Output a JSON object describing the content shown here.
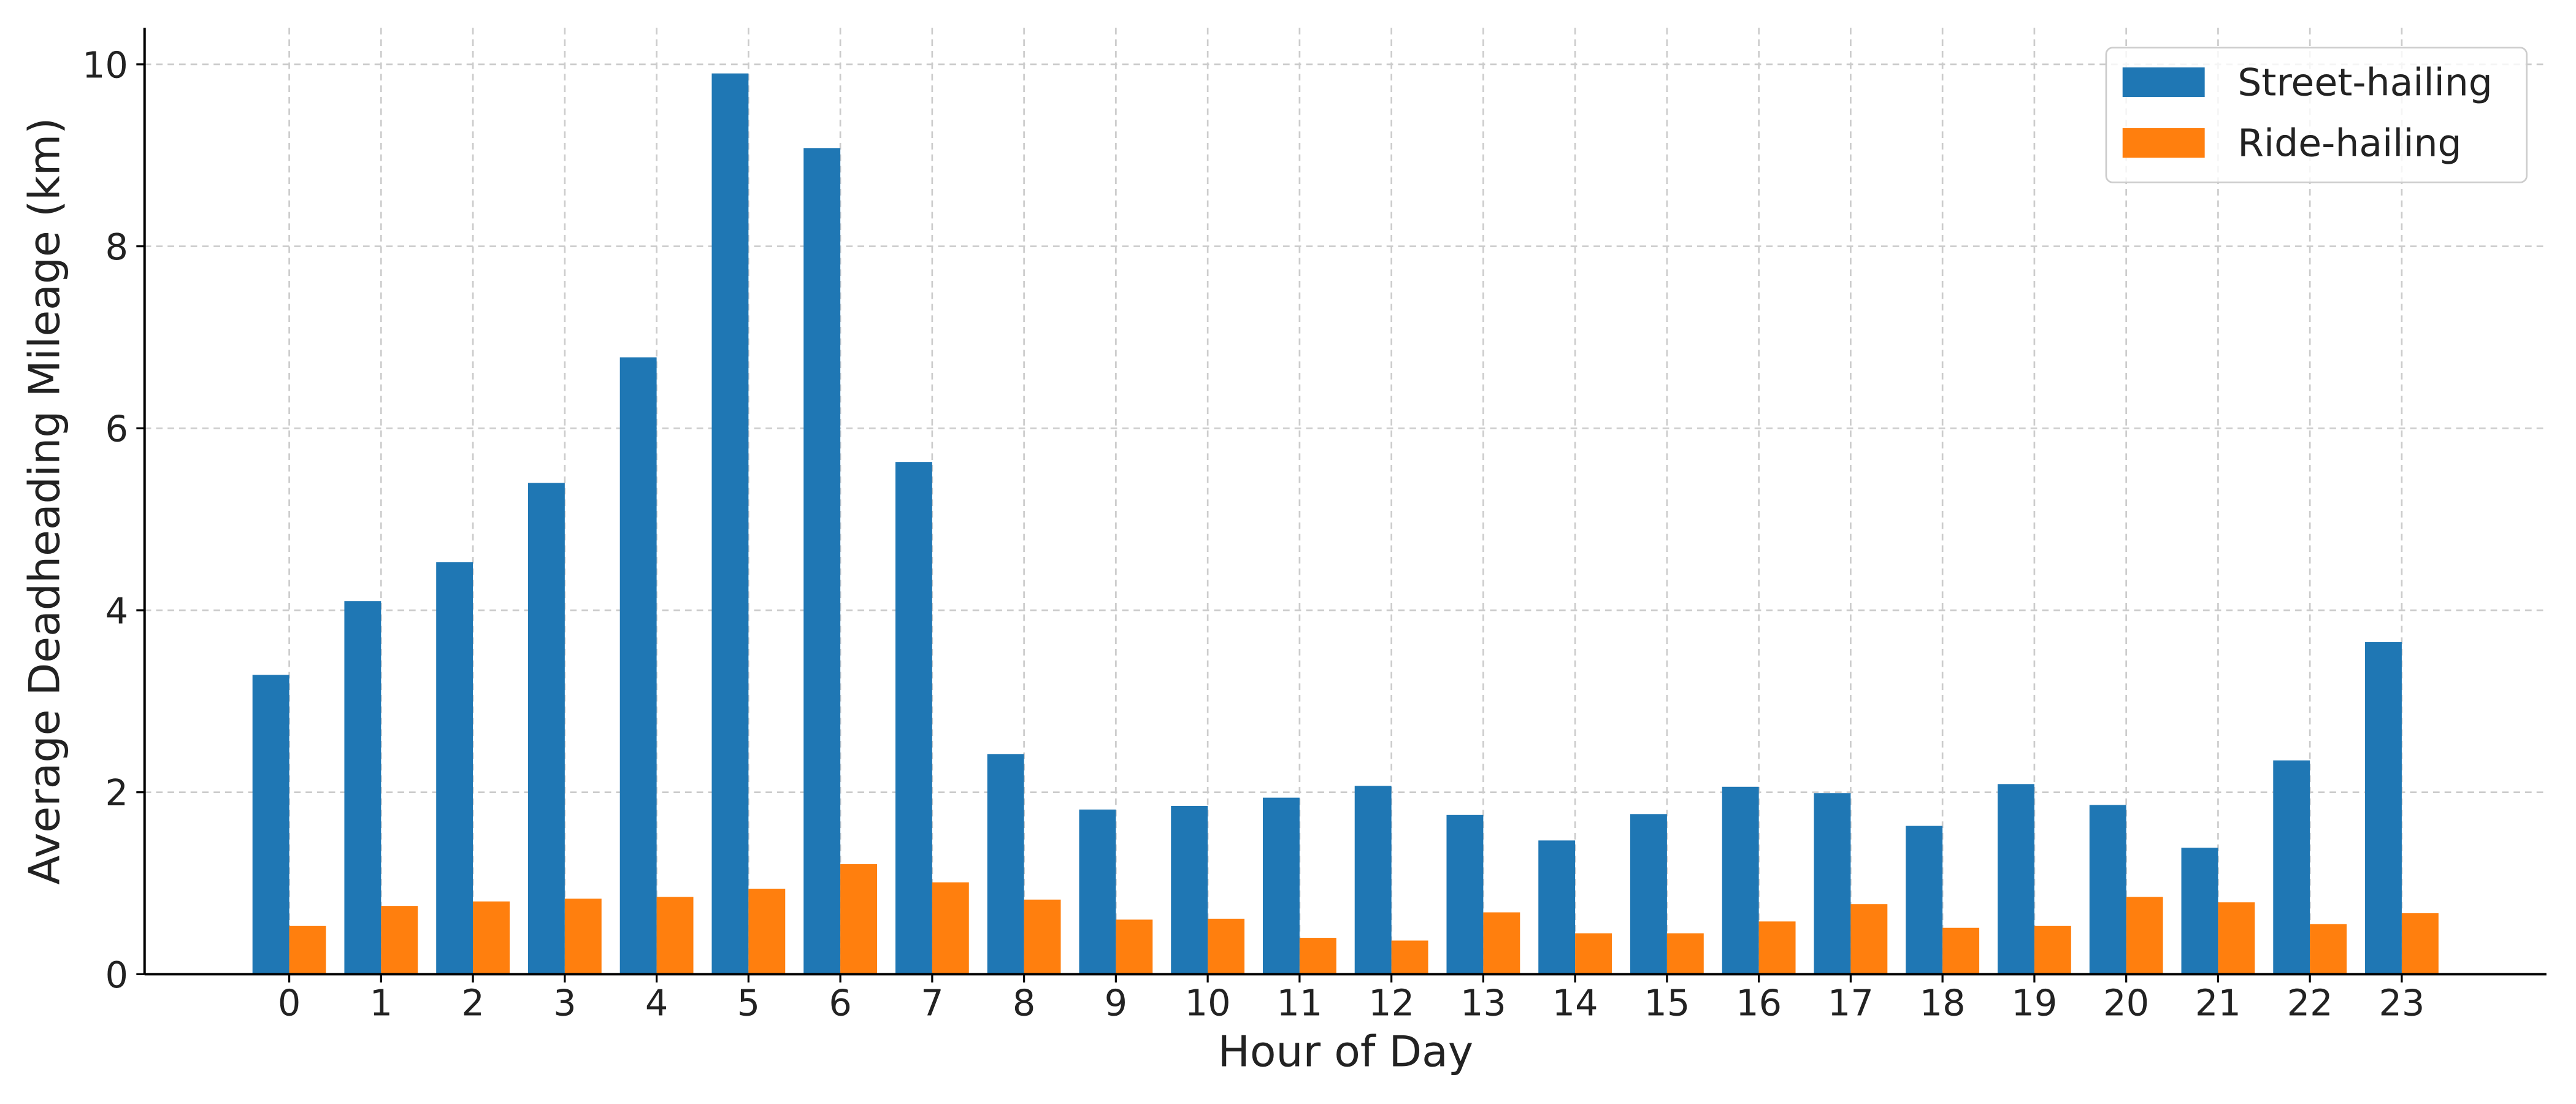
{
  "chart_data": {
    "type": "bar",
    "x_label": "Hour of Day",
    "y_label": "Average Deadheading Mileage (km)",
    "categories": [
      "0",
      "1",
      "2",
      "3",
      "4",
      "5",
      "6",
      "7",
      "8",
      "9",
      "10",
      "11",
      "12",
      "13",
      "14",
      "15",
      "16",
      "17",
      "18",
      "19",
      "20",
      "21",
      "22",
      "23"
    ],
    "series": [
      {
        "name": "Street-hailing",
        "color": "#1f77b4",
        "values": [
          3.29,
          4.1,
          4.53,
          5.4,
          6.78,
          9.9,
          9.08,
          5.63,
          2.42,
          1.81,
          1.85,
          1.94,
          2.07,
          1.75,
          1.47,
          1.76,
          2.06,
          1.99,
          1.63,
          2.09,
          1.86,
          1.39,
          2.35,
          3.65
        ]
      },
      {
        "name": "Ride-hailing",
        "color": "#ff7f0e",
        "values": [
          0.53,
          0.75,
          0.8,
          0.83,
          0.85,
          0.94,
          1.21,
          1.01,
          0.82,
          0.6,
          0.61,
          0.4,
          0.37,
          0.68,
          0.45,
          0.45,
          0.58,
          0.77,
          0.51,
          0.53,
          0.85,
          0.79,
          0.55,
          0.67
        ]
      }
    ],
    "ylim": [
      0,
      10.4
    ],
    "yticks": [
      0,
      2,
      4,
      6,
      8,
      10
    ],
    "grid": true,
    "legend": "upper right"
  }
}
